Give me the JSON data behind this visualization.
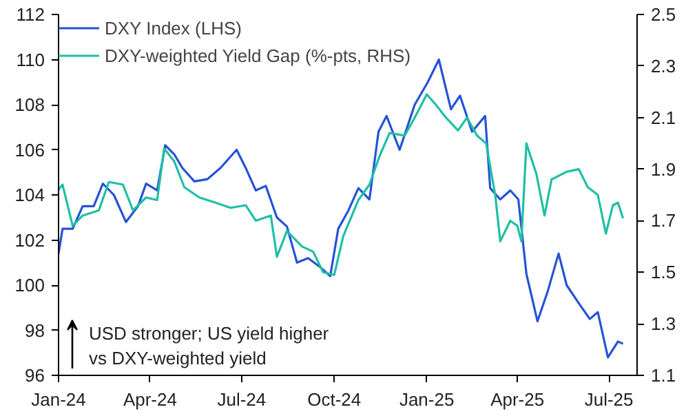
{
  "chart_data": {
    "type": "line",
    "xlim": [
      "2024-01-01",
      "2025-07-29"
    ],
    "xticks": [
      {
        "value": "2024-01-01",
        "label": "Jan-24"
      },
      {
        "value": "2024-04-01",
        "label": "Apr-24"
      },
      {
        "value": "2024-07-01",
        "label": "Jul-24"
      },
      {
        "value": "2024-10-01",
        "label": "Oct-24"
      },
      {
        "value": "2025-01-01",
        "label": "Jan-25"
      },
      {
        "value": "2025-04-01",
        "label": "Apr-25"
      },
      {
        "value": "2025-07-01",
        "label": "Jul-25"
      }
    ],
    "ylim": [
      96,
      112
    ],
    "yticks": [
      96,
      98,
      100,
      102,
      104,
      106,
      108,
      110,
      112
    ],
    "y2lim": [
      1.1,
      2.5
    ],
    "y2ticks": [
      1.1,
      1.3,
      1.5,
      1.7,
      1.9,
      2.1,
      2.3,
      2.5
    ],
    "grid": false,
    "legend": "top left",
    "line_style": "solid",
    "annotations": [
      "USD stronger;  US yield higher\nvs DXY-weighted yield"
    ],
    "series": [
      {
        "name": "DXY Index (LHS)",
        "color": "#2553d6",
        "x": [
          "2024-01-01",
          "2024-01-05",
          "2024-01-15",
          "2024-01-25",
          "2024-02-05",
          "2024-02-14",
          "2024-02-25",
          "2024-03-08",
          "2024-03-20",
          "2024-03-28",
          "2024-04-08",
          "2024-04-16",
          "2024-04-25",
          "2024-05-03",
          "2024-05-15",
          "2024-05-28",
          "2024-06-10",
          "2024-06-26",
          "2024-07-05",
          "2024-07-15",
          "2024-07-25",
          "2024-08-05",
          "2024-08-15",
          "2024-08-25",
          "2024-09-05",
          "2024-09-17",
          "2024-09-27",
          "2024-10-05",
          "2024-10-15",
          "2024-10-25",
          "2024-11-05",
          "2024-11-14",
          "2024-11-22",
          "2024-12-05",
          "2024-12-20",
          "2025-01-02",
          "2025-01-13",
          "2025-01-25",
          "2025-02-03",
          "2025-02-15",
          "2025-02-28",
          "2025-03-05",
          "2025-03-15",
          "2025-03-25",
          "2025-04-02",
          "2025-04-10",
          "2025-04-21",
          "2025-05-01",
          "2025-05-12",
          "2025-05-20",
          "2025-06-01",
          "2025-06-12",
          "2025-06-20",
          "2025-06-30",
          "2025-07-10",
          "2025-07-15"
        ],
        "values": [
          101.4,
          102.5,
          102.5,
          103.5,
          103.5,
          104.5,
          104,
          102.8,
          103.5,
          104.5,
          104.2,
          106.2,
          105.8,
          105.2,
          104.6,
          104.7,
          105.2,
          106,
          105.2,
          104.2,
          104.4,
          103,
          102.6,
          101,
          101.2,
          100.8,
          100.4,
          102.5,
          103.3,
          104.3,
          103.8,
          106.8,
          107.5,
          106,
          108,
          109,
          110,
          107.8,
          108.4,
          106.8,
          107.5,
          104.3,
          103.8,
          104.2,
          103.8,
          100.5,
          98.4,
          99.7,
          101.4,
          100,
          99.2,
          98.5,
          98.8,
          96.8,
          97.5,
          97.4
        ]
      },
      {
        "name": "DXY-weighted Yield Gap (%-pts, RHS)",
        "color": "#1fbfa5",
        "axis": "y2",
        "x": [
          "2024-01-01",
          "2024-01-05",
          "2024-01-15",
          "2024-01-25",
          "2024-02-10",
          "2024-02-20",
          "2024-03-05",
          "2024-03-15",
          "2024-03-28",
          "2024-04-08",
          "2024-04-15",
          "2024-04-25",
          "2024-05-05",
          "2024-05-20",
          "2024-06-05",
          "2024-06-20",
          "2024-07-05",
          "2024-07-15",
          "2024-07-30",
          "2024-08-05",
          "2024-08-15",
          "2024-08-30",
          "2024-09-10",
          "2024-09-20",
          "2024-10-01",
          "2024-10-10",
          "2024-10-25",
          "2024-11-05",
          "2024-11-15",
          "2024-11-25",
          "2024-12-10",
          "2024-12-20",
          "2025-01-01",
          "2025-01-10",
          "2025-01-20",
          "2025-02-01",
          "2025-02-10",
          "2025-02-20",
          "2025-03-01",
          "2025-03-10",
          "2025-03-15",
          "2025-03-25",
          "2025-04-01",
          "2025-04-05",
          "2025-04-10",
          "2025-04-20",
          "2025-04-28",
          "2025-05-05",
          "2025-05-20",
          "2025-06-01",
          "2025-06-10",
          "2025-06-20",
          "2025-06-28",
          "2025-07-05",
          "2025-07-10",
          "2025-07-15"
        ],
        "values": [
          1.82,
          1.84,
          1.68,
          1.72,
          1.74,
          1.85,
          1.84,
          1.74,
          1.79,
          1.78,
          1.98,
          1.93,
          1.83,
          1.79,
          1.77,
          1.75,
          1.76,
          1.7,
          1.72,
          1.56,
          1.66,
          1.6,
          1.58,
          1.5,
          1.49,
          1.64,
          1.78,
          1.84,
          1.95,
          2.04,
          2.03,
          2.1,
          2.19,
          2.15,
          2.1,
          2.05,
          2.1,
          2.03,
          2.0,
          1.8,
          1.62,
          1.7,
          1.68,
          1.62,
          2.0,
          1.88,
          1.72,
          1.86,
          1.89,
          1.9,
          1.83,
          1.8,
          1.65,
          1.76,
          1.77,
          1.71
        ]
      }
    ]
  }
}
